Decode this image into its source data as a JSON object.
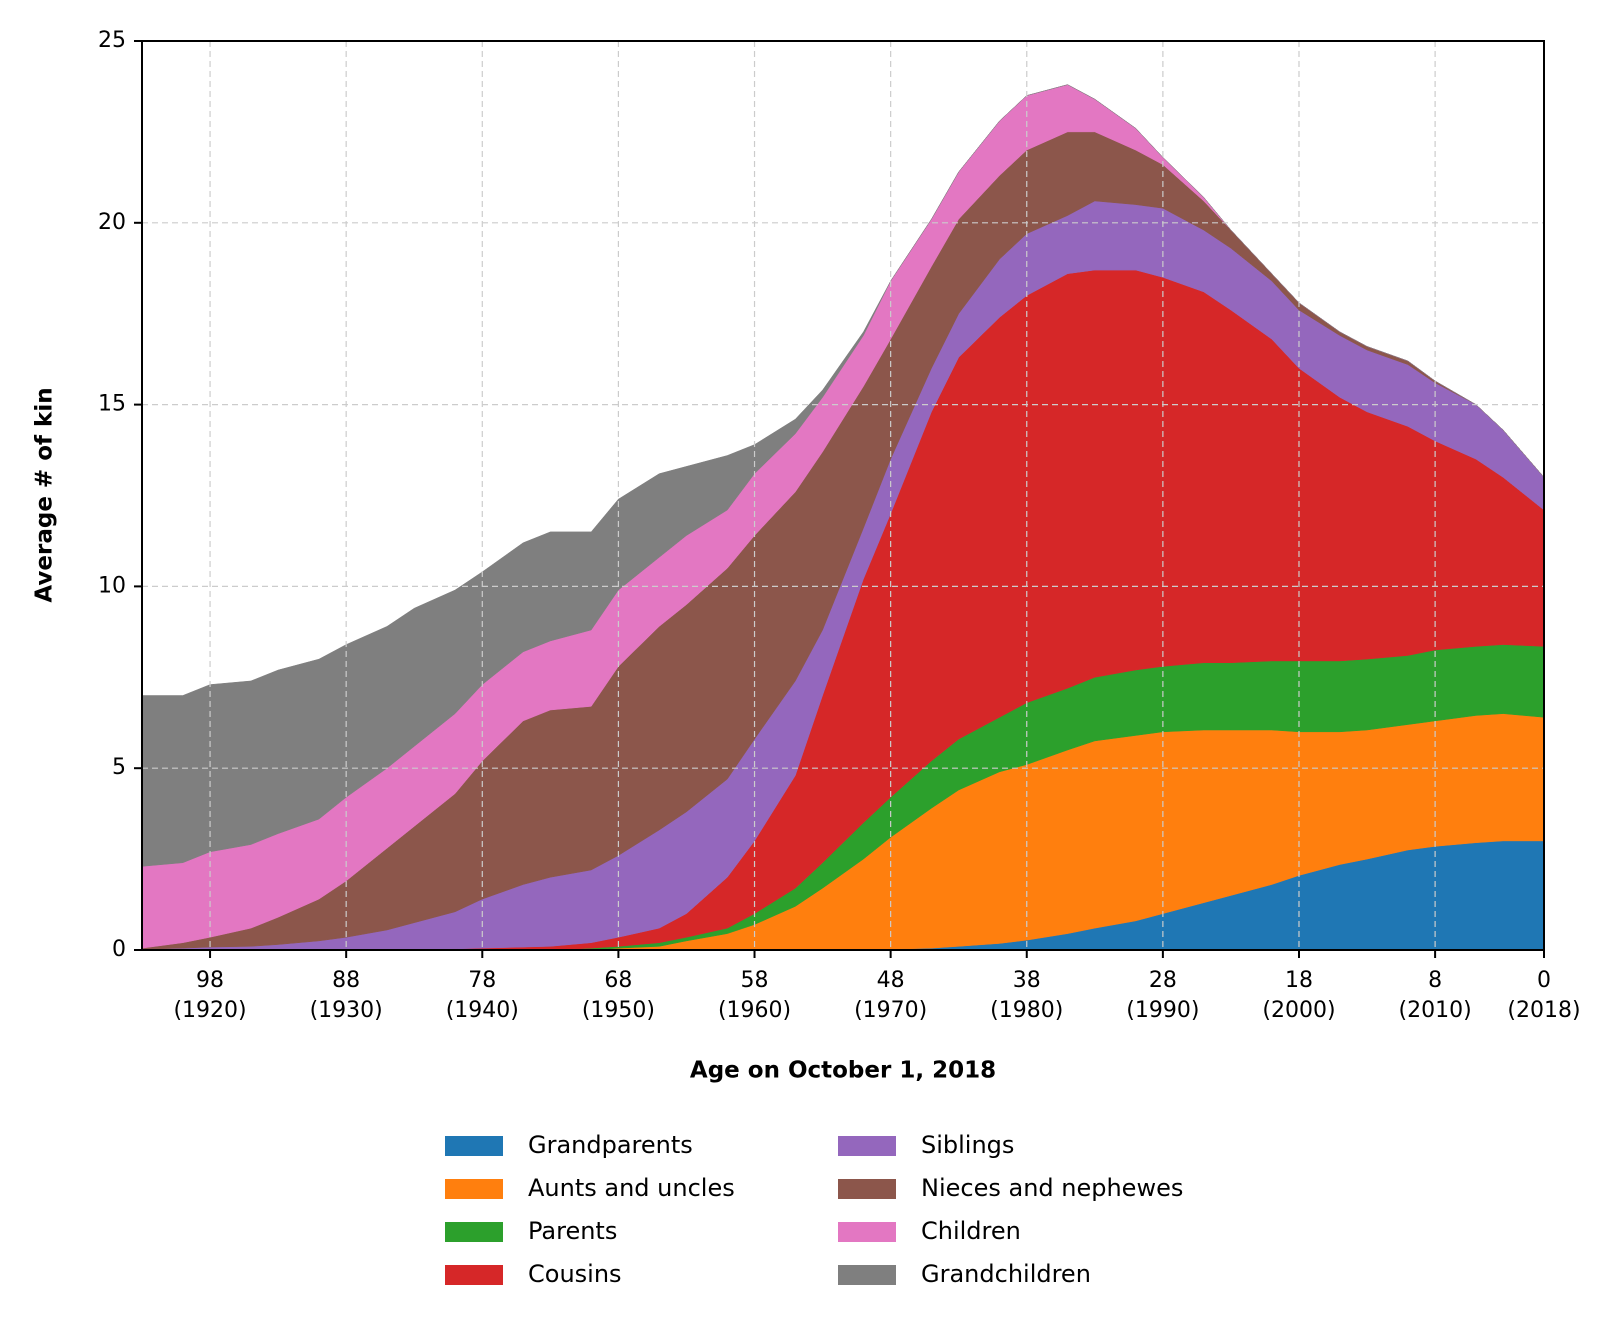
{
  "chart_data": {
    "type": "stacked_area",
    "xlabel": "Age on October 1, 2018",
    "ylabel": "Average # of kin",
    "x": [
      103,
      100,
      98,
      95,
      93,
      90,
      88,
      85,
      83,
      80,
      78,
      75,
      73,
      70,
      68,
      65,
      63,
      60,
      58,
      55,
      53,
      50,
      48,
      45,
      43,
      40,
      38,
      35,
      33,
      30,
      28,
      25,
      23,
      20,
      18,
      15,
      13,
      10,
      8,
      5,
      3,
      0
    ],
    "series": [
      {
        "name": "Grandparents",
        "color": "#1f77b4",
        "values": [
          0,
          0,
          0,
          0,
          0,
          0,
          0,
          0,
          0,
          0,
          0,
          0,
          0,
          0,
          0,
          0,
          0,
          0,
          0,
          0,
          0,
          0,
          0.02,
          0.05,
          0.1,
          0.18,
          0.27,
          0.45,
          0.6,
          0.8,
          1.0,
          1.3,
          1.5,
          1.8,
          2.05,
          2.35,
          2.5,
          2.75,
          2.85,
          2.95,
          3.0,
          3.0
        ]
      },
      {
        "name": "Aunts and uncles",
        "color": "#ff7f0e",
        "values": [
          0,
          0,
          0,
          0,
          0,
          0,
          0,
          0,
          0,
          0,
          0,
          0,
          0,
          0,
          0.05,
          0.1,
          0.25,
          0.45,
          0.7,
          1.2,
          1.7,
          2.5,
          3.08,
          3.85,
          4.3,
          4.72,
          4.83,
          5.05,
          5.15,
          5.1,
          5.0,
          4.75,
          4.55,
          4.25,
          3.95,
          3.65,
          3.55,
          3.45,
          3.45,
          3.5,
          3.5,
          3.4
        ]
      },
      {
        "name": "Parents",
        "color": "#2ca02c",
        "values": [
          0,
          0,
          0,
          0,
          0,
          0,
          0,
          0,
          0,
          0,
          0,
          0,
          0,
          0.05,
          0.05,
          0.1,
          0.1,
          0.15,
          0.3,
          0.5,
          0.7,
          1.0,
          1.1,
          1.3,
          1.4,
          1.5,
          1.7,
          1.7,
          1.75,
          1.8,
          1.8,
          1.85,
          1.85,
          1.9,
          1.95,
          1.95,
          1.95,
          1.9,
          1.95,
          1.9,
          1.9,
          1.95
        ]
      },
      {
        "name": "Cousins",
        "color": "#d62728",
        "values": [
          0,
          0,
          0,
          0,
          0,
          0,
          0,
          0,
          0.02,
          0.03,
          0.05,
          0.08,
          0.1,
          0.15,
          0.25,
          0.4,
          0.65,
          1.4,
          2.0,
          3.1,
          4.6,
          6.7,
          7.8,
          9.6,
          10.5,
          11.0,
          11.2,
          11.4,
          11.2,
          11.0,
          10.7,
          10.2,
          9.7,
          8.85,
          8.05,
          7.25,
          6.8,
          6.3,
          5.75,
          5.15,
          4.6,
          3.75
        ]
      },
      {
        "name": "Siblings",
        "color": "#9467bd",
        "values": [
          0.02,
          0.05,
          0.08,
          0.1,
          0.15,
          0.25,
          0.35,
          0.55,
          0.73,
          1.02,
          1.35,
          1.72,
          1.9,
          2.0,
          2.25,
          2.7,
          2.8,
          2.7,
          2.8,
          2.6,
          1.8,
          1.4,
          1.5,
          1.2,
          1.2,
          1.6,
          1.7,
          1.6,
          1.9,
          1.8,
          1.9,
          1.7,
          1.7,
          1.6,
          1.6,
          1.7,
          1.7,
          1.7,
          1.6,
          1.5,
          1.3,
          0.9
        ]
      },
      {
        "name": "Nieces and nephewes",
        "color": "#8c564b",
        "values": [
          0.03,
          0.15,
          0.27,
          0.5,
          0.75,
          1.15,
          1.55,
          2.25,
          2.65,
          3.25,
          3.8,
          4.5,
          4.6,
          4.5,
          5.2,
          5.6,
          5.7,
          5.8,
          5.6,
          5.2,
          4.9,
          3.9,
          3.3,
          2.8,
          2.6,
          2.3,
          2.3,
          2.3,
          1.9,
          1.5,
          1.2,
          0.8,
          0.5,
          0.2,
          0.2,
          0.1,
          0.1,
          0.1,
          0.05,
          0,
          0,
          0
        ]
      },
      {
        "name": "Children",
        "color": "#e377c2",
        "values": [
          2.25,
          2.2,
          2.35,
          2.3,
          2.3,
          2.2,
          2.3,
          2.2,
          2.2,
          2.2,
          2.1,
          1.9,
          1.9,
          2.1,
          2.1,
          1.9,
          1.9,
          1.6,
          1.7,
          1.6,
          1.5,
          1.4,
          1.6,
          1.3,
          1.3,
          1.5,
          1.5,
          1.3,
          0.9,
          0.6,
          0.2,
          0.1,
          0,
          0,
          0,
          0,
          0,
          0,
          0,
          0,
          0,
          0
        ]
      },
      {
        "name": "Grandchildren",
        "color": "#7f7f7f",
        "values": [
          4.7,
          4.6,
          4.6,
          4.5,
          4.5,
          4.4,
          4.2,
          3.9,
          3.8,
          3.4,
          3.1,
          3.0,
          3.0,
          2.7,
          2.5,
          2.3,
          1.9,
          1.5,
          0.8,
          0.4,
          0.2,
          0.1,
          0,
          0,
          0,
          0,
          0,
          0,
          0,
          0,
          0,
          0,
          0,
          0,
          0,
          0,
          0,
          0,
          0,
          0,
          0,
          0
        ]
      }
    ],
    "xlim": [
      103,
      0
    ],
    "xticks": [
      {
        "value": 98,
        "label": "98\n(1920)"
      },
      {
        "value": 88,
        "label": "88\n(1930)"
      },
      {
        "value": 78,
        "label": "78\n(1940)"
      },
      {
        "value": 68,
        "label": "68\n(1950)"
      },
      {
        "value": 58,
        "label": "58\n(1960)"
      },
      {
        "value": 48,
        "label": "48\n(1970)"
      },
      {
        "value": 38,
        "label": "38\n(1980)"
      },
      {
        "value": 28,
        "label": "28\n(1990)"
      },
      {
        "value": 18,
        "label": "18\n(2000)"
      },
      {
        "value": 8,
        "label": "8\n(2010)"
      },
      {
        "value": 0,
        "label": "0\n(2018)"
      }
    ],
    "ylim": [
      0,
      25
    ],
    "yticks": [
      0,
      5,
      10,
      15,
      20,
      25
    ],
    "grid": true,
    "legend": "lower center"
  }
}
